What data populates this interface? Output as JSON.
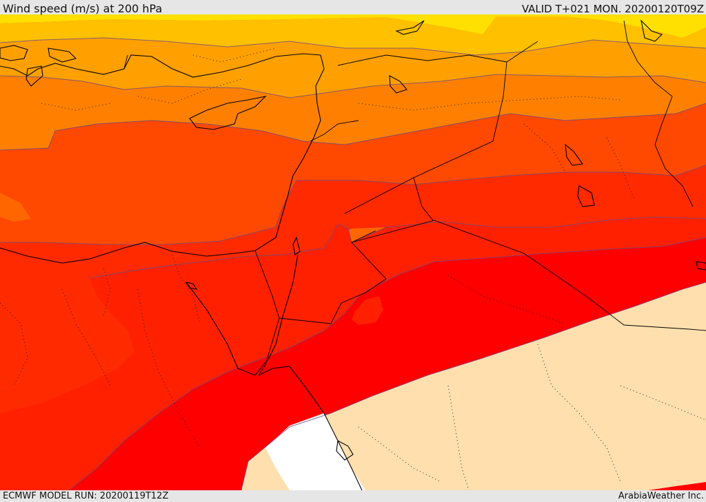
{
  "header": {
    "title": "Wind speed (m/s) at 200 hPa",
    "valid": "VALID T+021 MON. 20200120T09Z"
  },
  "footer": {
    "model_run": "ECMWF MODEL RUN: 20200119T12Z",
    "credit": "ArabiaWeather Inc."
  },
  "map": {
    "variable": "wind speed",
    "level": "200 hPa",
    "fill_colors": [
      "#ffe000",
      "#ffc000",
      "#ffa000",
      "#ff8000",
      "#ff6600",
      "#ff4800",
      "#ff2a00",
      "#ff0000",
      "#ffdfae",
      "#ffffff"
    ]
  }
}
